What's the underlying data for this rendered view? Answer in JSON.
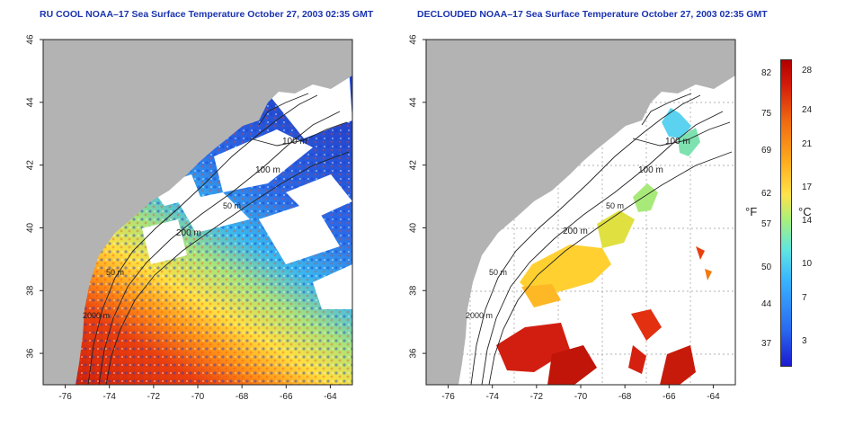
{
  "panels": [
    {
      "title": "RU COOL NOAA–17 Sea Surface Temperature October 27, 2003 02:35 GMT"
    },
    {
      "title": "DECLOUDED NOAA–17 Sea Surface Temperature October 27, 2003 02:35 GMT"
    }
  ],
  "axes": {
    "lon_ticks": [
      "-76",
      "-74",
      "-72",
      "-70",
      "-68",
      "-66",
      "-64"
    ],
    "lat_ticks": [
      "36",
      "38",
      "40",
      "42",
      "44",
      "46"
    ],
    "lon_range": [
      -77,
      -63
    ],
    "lat_range": [
      35,
      46
    ]
  },
  "isobaths": {
    "panel1": [
      "100 m",
      "100 m",
      "50 m",
      "200 m",
      "50 m",
      "2000 m"
    ],
    "panel2": [
      "100 m",
      "100 m",
      "50 m",
      "200 m",
      "50 m",
      "2000 m"
    ]
  },
  "colorbar": {
    "fahrenheit_labels": [
      "82",
      "75",
      "69",
      "62",
      "57",
      "50",
      "44",
      "37"
    ],
    "celsius_labels": [
      "28",
      "24",
      "21",
      "17",
      "14",
      "10",
      "7",
      "3"
    ],
    "fahrenheit_unit": "°F",
    "celsius_unit": "°C"
  },
  "colors": {
    "land": "#b3b3b3",
    "cloud": "#ffffff",
    "title": "#1a33b0"
  }
}
